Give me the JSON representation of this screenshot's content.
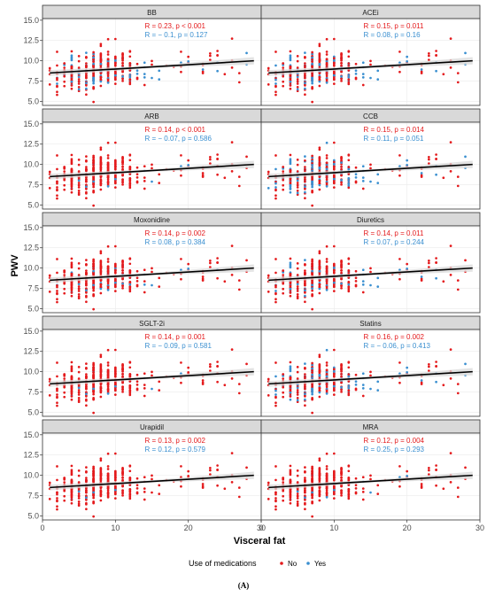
{
  "chart_data": {
    "type": "scatter",
    "xlabel": "Visceral fat",
    "ylabel": "PWV",
    "xlim": [
      0,
      30
    ],
    "ylim": [
      4.5,
      15.2
    ],
    "x_ticks": [
      0,
      10,
      20,
      30
    ],
    "y_ticks": [
      5.0,
      7.5,
      10.0,
      12.5,
      15.0
    ],
    "x_tick_labels": [
      "0",
      "10",
      "20",
      "30"
    ],
    "y_tick_labels": [
      "5.0",
      "7.5",
      "10.0",
      "12.5",
      "15.0"
    ],
    "grid": true,
    "legend": {
      "title": "Use of medications",
      "position": "bottom",
      "entries": [
        {
          "label": "No",
          "color": "#e41a1c"
        },
        {
          "label": "Yes",
          "color": "#3a8fd0"
        }
      ]
    },
    "caption": "(A)",
    "regression_line": {
      "x": [
        1,
        29
      ],
      "y": [
        8.5,
        10.0
      ]
    },
    "panels": [
      {
        "title": "BB",
        "no_stat": "R = 0.23, p < 0.001",
        "yes_stat": "R = − 0.1, p = 0.127",
        "yes_weight": 0.26
      },
      {
        "title": "ACEi",
        "no_stat": "R = 0.15, p = 0.011",
        "yes_stat": "R = 0.08, p = 0.16",
        "yes_weight": 0.3
      },
      {
        "title": "ARB",
        "no_stat": "R = 0.14, p < 0.001",
        "yes_stat": "R = − 0.07, p = 0.586",
        "yes_weight": 0.05
      },
      {
        "title": "CCB",
        "no_stat": "R = 0.15, p = 0.014",
        "yes_stat": "R = 0.11, p = 0.051",
        "yes_weight": 0.38
      },
      {
        "title": "Moxonidine",
        "no_stat": "R = 0.14, p = 0.002",
        "yes_stat": "R = 0.08, p = 0.384",
        "yes_weight": 0.1
      },
      {
        "title": "Diuretics",
        "no_stat": "R = 0.14, p = 0.011",
        "yes_stat": "R = 0.07, p = 0.244",
        "yes_weight": 0.2
      },
      {
        "title": "SGLT-2i",
        "no_stat": "R = 0.14, p = 0.001",
        "yes_stat": "R = − 0.09, p = 0.581",
        "yes_weight": 0.04
      },
      {
        "title": "Statins",
        "no_stat": "R = 0.16, p = 0.002",
        "yes_stat": "R = − 0.06, p = 0.413",
        "yes_weight": 0.33
      },
      {
        "title": "Urapidil",
        "no_stat": "R = 0.13, p = 0.002",
        "yes_stat": "R = 0.12, p = 0.579",
        "yes_weight": 0.02
      },
      {
        "title": "MRA",
        "no_stat": "R = 0.12, p = 0.004",
        "yes_stat": "R = 0.25, p = 0.293",
        "yes_weight": 0.05
      }
    ],
    "series": [
      {
        "name": "No",
        "color": "#e41a1c"
      },
      {
        "name": "Yes",
        "color": "#3a8fd0"
      }
    ],
    "colors": {
      "line": "#000000",
      "ribbon": "#d9d9d9",
      "strip": "#d9d9d9",
      "grid": "#ebebeb",
      "no_text": "#e41a1c",
      "yes_text": "#3a8fd0"
    }
  }
}
